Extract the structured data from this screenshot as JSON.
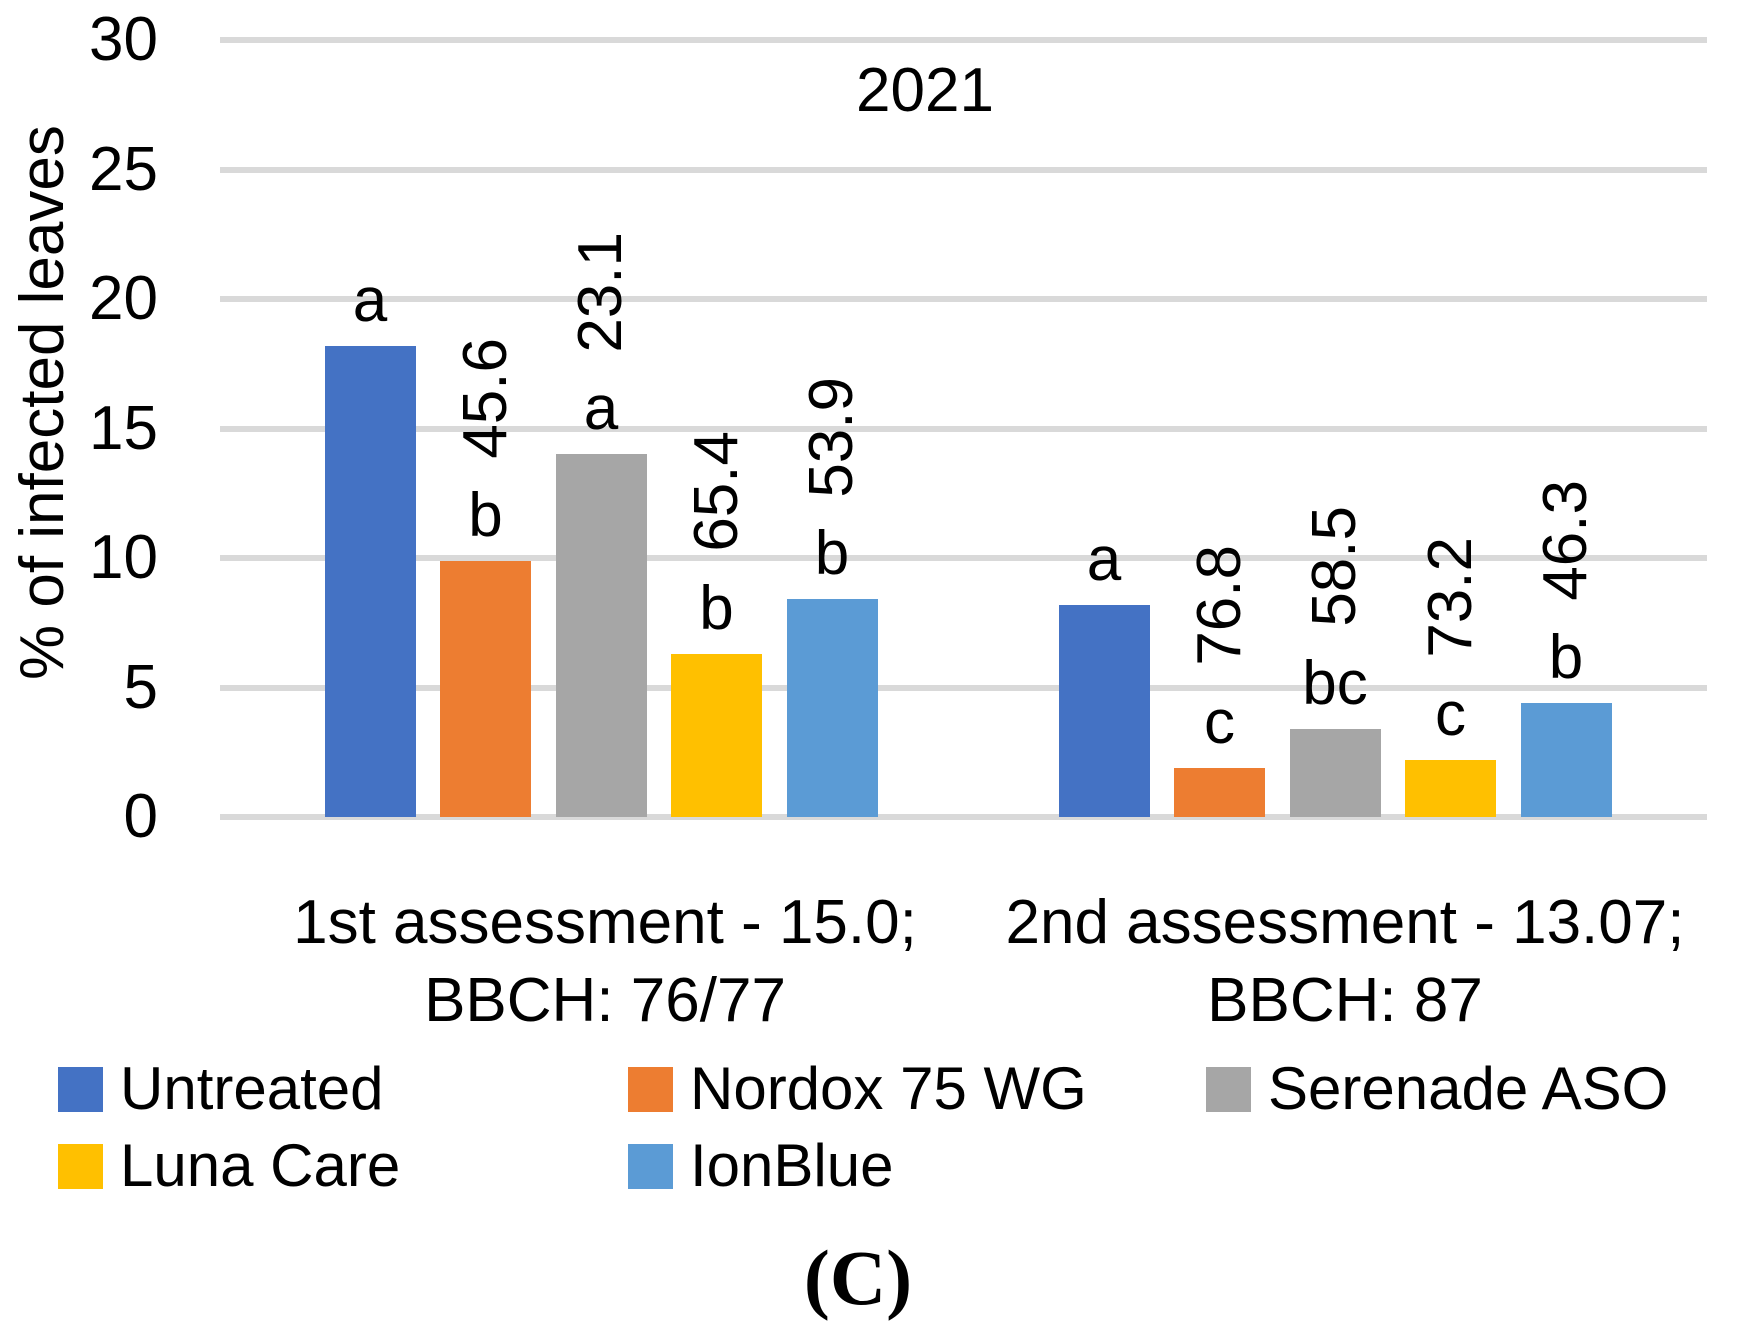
{
  "panel_label": "(C)",
  "chart_data": {
    "type": "bar",
    "title": "2021",
    "ylabel": "% of infected leaves",
    "xlabel": "",
    "ylim": [
      0,
      30
    ],
    "yticks": [
      0,
      5,
      10,
      15,
      20,
      25,
      30
    ],
    "grid": true,
    "gridline_color": "#D9D9D9",
    "text_color": "#000000",
    "legend_position": "bottom",
    "categories": [
      "1st assessment - 15.0; BBCH: 76/77",
      "2nd assessment - 13.07; BBCH: 87"
    ],
    "category_lines": [
      [
        "1st assessment - 15.0;",
        "BBCH: 76/77"
      ],
      [
        "2nd assessment - 13.07;",
        "BBCH: 87"
      ]
    ],
    "series": [
      {
        "name": "Untreated",
        "color": "#4472C4",
        "values": [
          18.2,
          8.2
        ],
        "sig_letters": [
          "a",
          "a"
        ],
        "value_labels": [
          "",
          ""
        ]
      },
      {
        "name": "Nordox 75 WG",
        "color": "#ED7D31",
        "values": [
          9.9,
          1.9
        ],
        "sig_letters": [
          "b",
          "c"
        ],
        "value_labels": [
          "45.6",
          "76.8"
        ]
      },
      {
        "name": "Serenade ASO",
        "color": "#A6A6A6",
        "values": [
          14.0,
          3.4
        ],
        "sig_letters": [
          "a",
          "bc"
        ],
        "value_labels": [
          "23.1",
          "58.5"
        ]
      },
      {
        "name": "Luna Care",
        "color": "#FFC000",
        "values": [
          6.3,
          2.2
        ],
        "sig_letters": [
          "b",
          "c"
        ],
        "value_labels": [
          "65.4",
          "73.2"
        ]
      },
      {
        "name": "IonBlue",
        "color": "#5B9BD5",
        "values": [
          8.4,
          4.4
        ],
        "sig_letters": [
          "b",
          "b"
        ],
        "value_labels": [
          "53.9",
          "46.3"
        ]
      }
    ]
  },
  "legend": {
    "rows": [
      [
        "Untreated",
        "Nordox 75 WG",
        "Serenade ASO"
      ],
      [
        "Luna Care",
        "IonBlue"
      ]
    ]
  }
}
